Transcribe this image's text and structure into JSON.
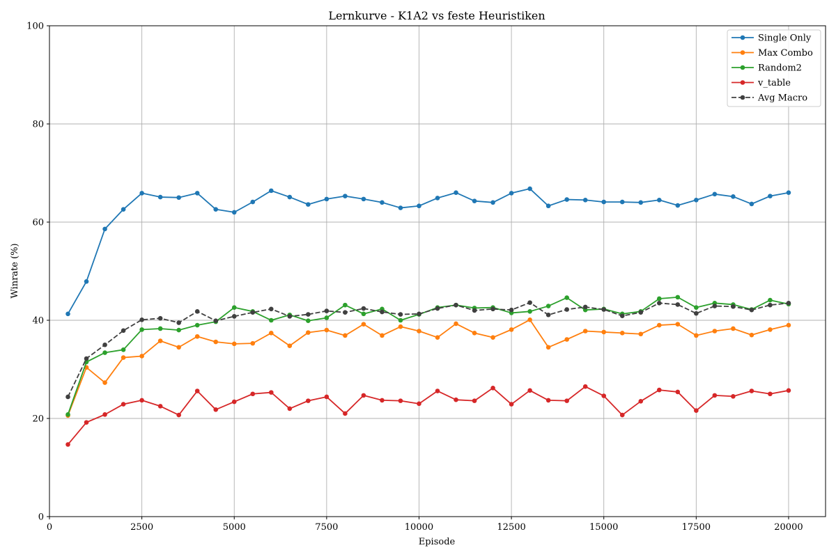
{
  "chart_data": {
    "type": "line",
    "title": "Lernkurve - K1A2 vs feste Heuristiken",
    "xlabel": "Episode",
    "ylabel": "Winrate (%)",
    "xlim": [
      0,
      21000
    ],
    "ylim": [
      0,
      100
    ],
    "xticks": [
      0,
      2500,
      5000,
      7500,
      10000,
      12500,
      15000,
      17500,
      20000
    ],
    "yticks": [
      0,
      20,
      40,
      60,
      80,
      100
    ],
    "grid": true,
    "legend_position": "top-right",
    "x": [
      500,
      1000,
      1500,
      2000,
      2500,
      3000,
      3500,
      4000,
      4500,
      5000,
      5500,
      6000,
      6500,
      7000,
      7500,
      8000,
      8500,
      9000,
      9500,
      10000,
      10500,
      11000,
      11500,
      12000,
      12500,
      13000,
      13500,
      14000,
      14500,
      15000,
      15500,
      16000,
      16500,
      17000,
      17500,
      18000,
      18500,
      19000,
      19500,
      20000
    ],
    "series": [
      {
        "name": "Single Only",
        "color": "#1f77b4",
        "dashed": false,
        "values": [
          41.3,
          47.9,
          58.6,
          62.6,
          65.9,
          65.1,
          65.0,
          65.9,
          62.6,
          62.0,
          64.1,
          66.4,
          65.1,
          63.6,
          64.7,
          65.3,
          64.7,
          64.0,
          62.9,
          63.3,
          64.9,
          66.0,
          64.3,
          64.0,
          65.9,
          66.8,
          63.3,
          64.6,
          64.5,
          64.1,
          64.1,
          64.0,
          64.5,
          63.4,
          64.5,
          65.7,
          65.2,
          63.7,
          65.3,
          66.0
        ]
      },
      {
        "name": "Max Combo",
        "color": "#ff7f0e",
        "dashed": false,
        "values": [
          20.6,
          30.4,
          27.3,
          32.4,
          32.7,
          35.8,
          34.5,
          36.7,
          35.6,
          35.2,
          35.3,
          37.4,
          34.8,
          37.5,
          38.0,
          36.9,
          39.2,
          36.9,
          38.7,
          37.8,
          36.5,
          39.3,
          37.4,
          36.5,
          38.1,
          40.1,
          34.5,
          36.1,
          37.8,
          37.6,
          37.4,
          37.2,
          39.0,
          39.2,
          36.9,
          37.8,
          38.3,
          37.0,
          38.1,
          39.0
        ]
      },
      {
        "name": "Random2",
        "color": "#2ca02c",
        "dashed": false,
        "values": [
          20.8,
          31.5,
          33.4,
          34.0,
          38.1,
          38.3,
          38.0,
          39.0,
          39.7,
          42.6,
          41.8,
          40.0,
          41.1,
          39.9,
          40.5,
          43.1,
          41.3,
          42.3,
          40.0,
          41.2,
          42.6,
          43.1,
          42.5,
          42.6,
          41.5,
          41.8,
          42.9,
          44.6,
          42.1,
          42.3,
          41.3,
          41.8,
          44.4,
          44.7,
          42.6,
          43.5,
          43.2,
          42.2,
          44.1,
          43.3
        ]
      },
      {
        "name": "v_table",
        "color": "#d62728",
        "dashed": false,
        "values": [
          14.7,
          19.2,
          20.8,
          22.9,
          23.7,
          22.5,
          20.7,
          25.6,
          21.8,
          23.4,
          25.0,
          25.3,
          22.0,
          23.6,
          24.4,
          21.0,
          24.7,
          23.7,
          23.6,
          23.0,
          25.6,
          23.8,
          23.6,
          26.2,
          22.9,
          25.7,
          23.7,
          23.6,
          26.5,
          24.6,
          20.7,
          23.5,
          25.8,
          25.4,
          21.6,
          24.7,
          24.5,
          25.6,
          25.0,
          25.7
        ]
      },
      {
        "name": "Avg Macro",
        "color": "#404040",
        "dashed": true,
        "values": [
          24.4,
          32.2,
          35.0,
          37.9,
          40.1,
          40.4,
          39.5,
          41.8,
          39.9,
          40.8,
          41.6,
          42.3,
          40.8,
          41.2,
          41.9,
          41.6,
          42.4,
          41.7,
          41.2,
          41.3,
          42.4,
          43.1,
          42.0,
          42.3,
          42.1,
          43.6,
          41.1,
          42.2,
          42.7,
          42.2,
          40.9,
          41.6,
          43.5,
          43.2,
          41.4,
          42.9,
          42.8,
          42.1,
          43.1,
          43.5
        ]
      }
    ]
  }
}
